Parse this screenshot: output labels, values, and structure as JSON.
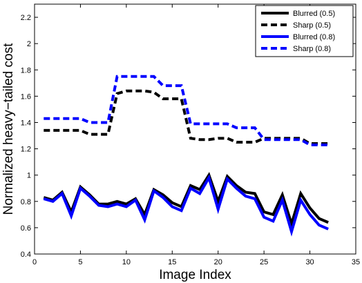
{
  "chart_data": {
    "type": "line",
    "title": "",
    "xlabel": "Image Index",
    "ylabel": "Normalized heavy−tailed cost",
    "xlim": [
      0,
      35
    ],
    "ylim": [
      0.4,
      2.3
    ],
    "xticks": [
      0,
      5,
      10,
      15,
      20,
      25,
      30,
      35
    ],
    "yticks": [
      0.4,
      0.6,
      0.8,
      1,
      1.2,
      1.4,
      1.6,
      1.8,
      2,
      2.2
    ],
    "grid": false,
    "legend_position": "top-right",
    "x": [
      1,
      2,
      3,
      4,
      5,
      6,
      7,
      8,
      9,
      10,
      11,
      12,
      13,
      14,
      15,
      16,
      17,
      18,
      19,
      20,
      21,
      22,
      23,
      24,
      25,
      26,
      27,
      28,
      29,
      30,
      31,
      32
    ],
    "series": [
      {
        "name": "Blurred (0.5)",
        "color": "#000000",
        "dash": "solid",
        "values": [
          0.83,
          0.81,
          0.87,
          0.72,
          0.91,
          0.85,
          0.78,
          0.78,
          0.8,
          0.78,
          0.82,
          0.7,
          0.89,
          0.85,
          0.79,
          0.76,
          0.92,
          0.89,
          1.0,
          0.8,
          0.99,
          0.92,
          0.87,
          0.86,
          0.72,
          0.7,
          0.85,
          0.63,
          0.86,
          0.75,
          0.67,
          0.64
        ]
      },
      {
        "name": "Sharp (0.5)",
        "color": "#000000",
        "dash": "dashed",
        "values": [
          1.34,
          1.34,
          1.34,
          1.34,
          1.34,
          1.31,
          1.31,
          1.31,
          1.62,
          1.64,
          1.64,
          1.64,
          1.63,
          1.58,
          1.58,
          1.58,
          1.28,
          1.27,
          1.27,
          1.28,
          1.28,
          1.25,
          1.25,
          1.25,
          1.28,
          1.28,
          1.28,
          1.28,
          1.28,
          1.24,
          1.24,
          1.24
        ]
      },
      {
        "name": "Blurred (0.8)",
        "color": "#0000ff",
        "dash": "solid",
        "values": [
          0.82,
          0.8,
          0.86,
          0.69,
          0.9,
          0.84,
          0.77,
          0.76,
          0.78,
          0.76,
          0.81,
          0.66,
          0.88,
          0.83,
          0.76,
          0.73,
          0.9,
          0.86,
          0.98,
          0.74,
          0.97,
          0.9,
          0.84,
          0.82,
          0.68,
          0.65,
          0.81,
          0.57,
          0.81,
          0.7,
          0.62,
          0.59
        ]
      },
      {
        "name": "Sharp (0.8)",
        "color": "#0000ff",
        "dash": "dashed",
        "values": [
          1.43,
          1.43,
          1.43,
          1.43,
          1.43,
          1.4,
          1.4,
          1.4,
          1.75,
          1.75,
          1.75,
          1.75,
          1.75,
          1.68,
          1.68,
          1.68,
          1.39,
          1.39,
          1.39,
          1.39,
          1.39,
          1.36,
          1.36,
          1.36,
          1.27,
          1.27,
          1.27,
          1.27,
          1.27,
          1.23,
          1.23,
          1.23
        ]
      }
    ]
  }
}
